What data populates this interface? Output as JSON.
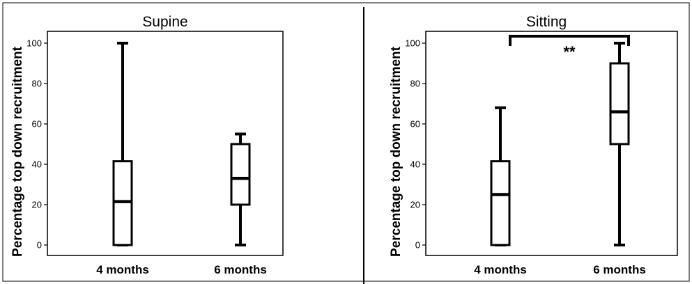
{
  "chart_data": [
    {
      "type": "box",
      "title": "Supine",
      "ylabel": "Percentage top down recruitment",
      "xlabel": "",
      "ylim": [
        0,
        100
      ],
      "yticks": [
        "0",
        "20",
        "40",
        "60",
        "80",
        "100"
      ],
      "categories": [
        "4 months",
        "6 months"
      ],
      "boxes": [
        {
          "min": 0,
          "q1": 0,
          "median": 21.5,
          "q3": 41.5,
          "max": 100
        },
        {
          "min": 0,
          "q1": 20,
          "median": 33,
          "q3": 50,
          "max": 55
        }
      ],
      "annotation": null
    },
    {
      "type": "box",
      "title": "Sitting",
      "ylabel": "Percentage top down recruitment",
      "xlabel": "",
      "ylim": [
        0,
        100
      ],
      "yticks": [
        "0",
        "20",
        "40",
        "60",
        "80",
        "100"
      ],
      "categories": [
        "4 months",
        "6 months"
      ],
      "boxes": [
        {
          "min": 0,
          "q1": 0,
          "median": 25,
          "q3": 41.5,
          "max": 68
        },
        {
          "min": 0,
          "q1": 50,
          "median": 66,
          "q3": 90,
          "max": 100
        }
      ],
      "annotation": {
        "text": "**",
        "between": [
          0,
          1
        ]
      }
    }
  ]
}
